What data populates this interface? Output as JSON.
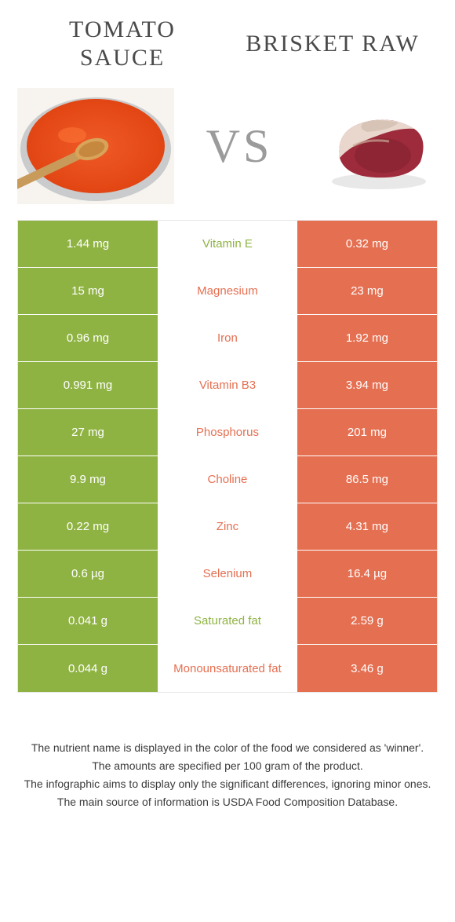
{
  "titles": {
    "left_line1": "TOMATO",
    "left_line2": "SAUCE",
    "right": "BRISKET RAW"
  },
  "vs_label": "VS",
  "colors": {
    "left": "#8fb343",
    "right": "#e56f51",
    "mid_bg": "#ffffff"
  },
  "rows": [
    {
      "left": "1.44 mg",
      "label": "Vitamin E",
      "right": "0.32 mg",
      "winner": "left"
    },
    {
      "left": "15 mg",
      "label": "Magnesium",
      "right": "23 mg",
      "winner": "right"
    },
    {
      "left": "0.96 mg",
      "label": "Iron",
      "right": "1.92 mg",
      "winner": "right"
    },
    {
      "left": "0.991 mg",
      "label": "Vitamin B3",
      "right": "3.94 mg",
      "winner": "right"
    },
    {
      "left": "27 mg",
      "label": "Phosphorus",
      "right": "201 mg",
      "winner": "right"
    },
    {
      "left": "9.9 mg",
      "label": "Choline",
      "right": "86.5 mg",
      "winner": "right"
    },
    {
      "left": "0.22 mg",
      "label": "Zinc",
      "right": "4.31 mg",
      "winner": "right"
    },
    {
      "left": "0.6 µg",
      "label": "Selenium",
      "right": "16.4 µg",
      "winner": "right"
    },
    {
      "left": "0.041 g",
      "label": "Saturated fat",
      "right": "2.59 g",
      "winner": "left"
    },
    {
      "left": "0.044 g",
      "label": "Monounsaturated fat",
      "right": "3.46 g",
      "winner": "right"
    }
  ],
  "footnotes": [
    "The nutrient name is displayed in the color of the food we considered as 'winner'.",
    "The amounts are specified per 100 gram of the product.",
    "The infographic aims to display only the significant differences, ignoring minor ones.",
    "The main source of information is USDA Food Composition Database."
  ]
}
